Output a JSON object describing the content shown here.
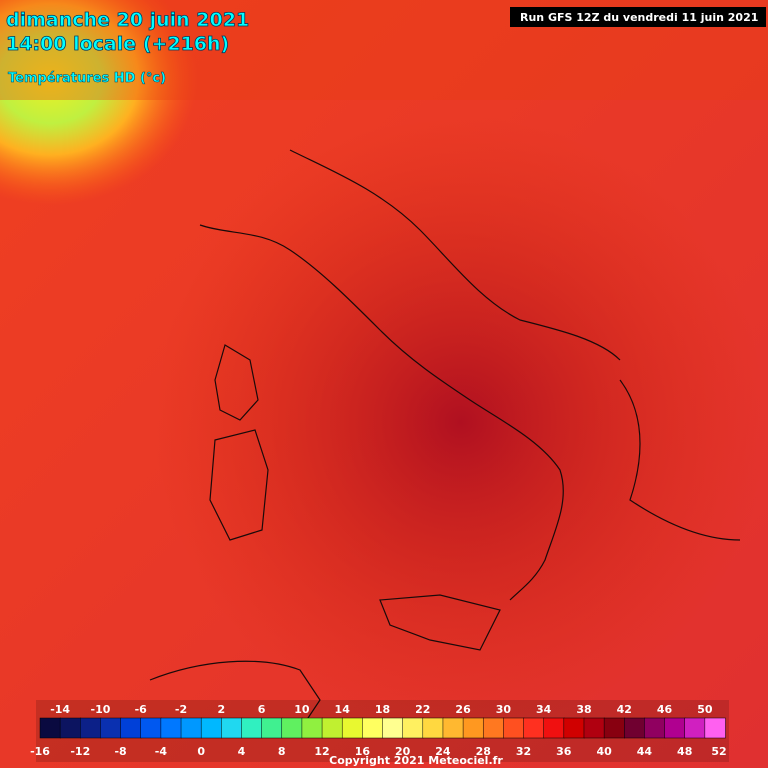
{
  "header": {
    "title": "dimanche 20 juin 2021",
    "time": "14:00 locale (+216h)",
    "variable": "Températures HD (°c)",
    "run": "Run GFS 12Z du vendredi 11 juin 2021"
  },
  "legend": {
    "top_labels": [
      "-14",
      "-10",
      "-6",
      "-2",
      "2",
      "6",
      "10",
      "14",
      "18",
      "22",
      "26",
      "30",
      "34",
      "38",
      "42",
      "46",
      "50"
    ],
    "bottom_labels": [
      "-16",
      "-12",
      "-8",
      "-4",
      "0",
      "4",
      "8",
      "12",
      "16",
      "20",
      "24",
      "28",
      "32",
      "36",
      "40",
      "44",
      "48",
      "52"
    ],
    "colors": [
      "#0a0a40",
      "#0c1460",
      "#0c2088",
      "#0a30b0",
      "#0040d8",
      "#0058f0",
      "#0078ff",
      "#0098ff",
      "#00b8ff",
      "#20d8f0",
      "#30f0c0",
      "#40f090",
      "#60f060",
      "#90f040",
      "#c0f030",
      "#e8f830",
      "#ffff60",
      "#ffff90",
      "#fff060",
      "#ffd840",
      "#ffb830",
      "#ff9820",
      "#ff7820",
      "#ff5020",
      "#ff3020",
      "#f01010",
      "#d00000",
      "#b00010",
      "#880010",
      "#700030",
      "#900060",
      "#b00090",
      "#d020c0",
      "#ff60f0"
    ]
  },
  "footer": {
    "copyright": "Copyright 2021 Meteociel.fr"
  }
}
